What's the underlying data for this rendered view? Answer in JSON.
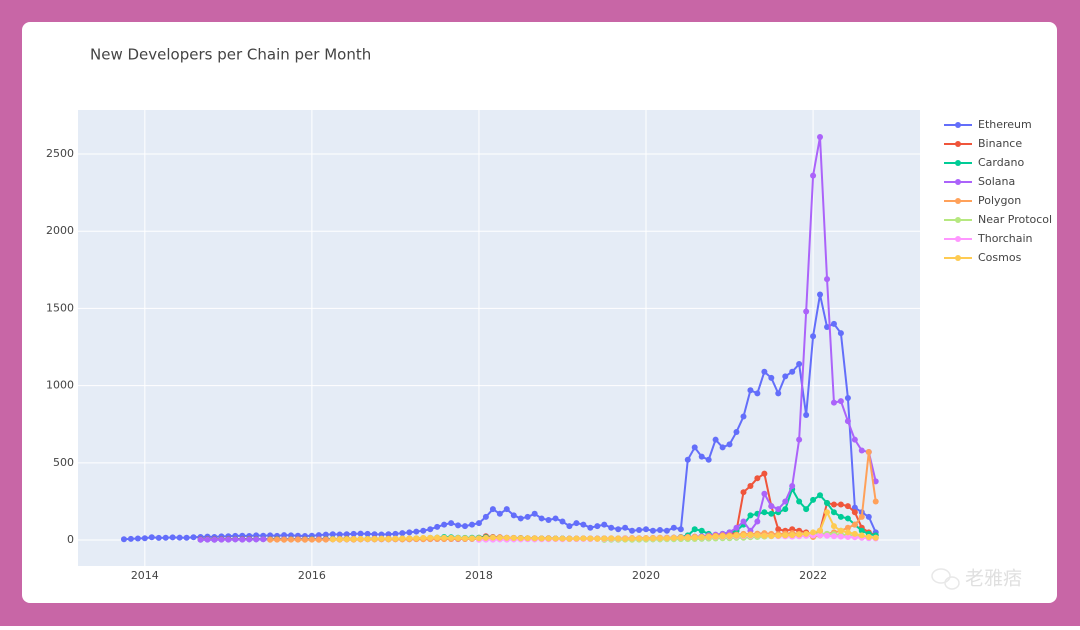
{
  "chart_data": {
    "type": "line",
    "title": "New Developers per Chain per Month",
    "x": [
      2013.75,
      2013.833,
      2013.917,
      2014.0,
      2014.083,
      2014.167,
      2014.25,
      2014.333,
      2014.417,
      2014.5,
      2014.583,
      2014.667,
      2014.75,
      2014.833,
      2014.917,
      2015.0,
      2015.083,
      2015.167,
      2015.25,
      2015.333,
      2015.417,
      2015.5,
      2015.583,
      2015.667,
      2015.75,
      2015.833,
      2015.917,
      2016.0,
      2016.083,
      2016.167,
      2016.25,
      2016.333,
      2016.417,
      2016.5,
      2016.583,
      2016.667,
      2016.75,
      2016.833,
      2016.917,
      2017.0,
      2017.083,
      2017.167,
      2017.25,
      2017.333,
      2017.417,
      2017.5,
      2017.583,
      2017.667,
      2017.75,
      2017.833,
      2017.917,
      2018.0,
      2018.083,
      2018.167,
      2018.25,
      2018.333,
      2018.417,
      2018.5,
      2018.583,
      2018.667,
      2018.75,
      2018.833,
      2018.917,
      2019.0,
      2019.083,
      2019.167,
      2019.25,
      2019.333,
      2019.417,
      2019.5,
      2019.583,
      2019.667,
      2019.75,
      2019.833,
      2019.917,
      2020.0,
      2020.083,
      2020.167,
      2020.25,
      2020.333,
      2020.417,
      2020.5,
      2020.583,
      2020.667,
      2020.75,
      2020.833,
      2020.917,
      2021.0,
      2021.083,
      2021.167,
      2021.25,
      2021.333,
      2021.417,
      2021.5,
      2021.583,
      2021.667,
      2021.75,
      2021.833,
      2021.917,
      2022.0,
      2022.083,
      2022.167,
      2022.25,
      2022.333,
      2022.417,
      2022.5,
      2022.583,
      2022.667,
      2022.75
    ],
    "series": [
      {
        "name": "Ethereum",
        "color": "#636efa",
        "values": [
          5,
          8,
          10,
          12,
          18,
          14,
          15,
          17,
          16,
          15,
          18,
          20,
          22,
          20,
          24,
          25,
          27,
          28,
          26,
          30,
          28,
          30,
          27,
          32,
          30,
          28,
          26,
          28,
          32,
          35,
          38,
          36,
          38,
          40,
          42,
          40,
          38,
          36,
          38,
          40,
          45,
          50,
          55,
          60,
          70,
          85,
          100,
          110,
          95,
          90,
          100,
          110,
          150,
          200,
          170,
          200,
          160,
          140,
          150,
          170,
          140,
          130,
          140,
          120,
          90,
          110,
          100,
          80,
          90,
          100,
          80,
          70,
          80,
          60,
          65,
          70,
          60,
          65,
          60,
          80,
          70,
          520,
          600,
          540,
          520,
          650,
          600,
          620,
          700,
          800,
          970,
          950,
          1090,
          1050,
          950,
          1060,
          1090,
          1140,
          810,
          1320,
          1590,
          1380,
          1400,
          1340,
          920,
          210,
          180,
          150,
          50
        ]
      },
      {
        "name": "Binance",
        "color": "#ef553b",
        "values": [
          null,
          null,
          null,
          null,
          null,
          null,
          null,
          null,
          null,
          null,
          null,
          5,
          6,
          5,
          6,
          6,
          7,
          6,
          8,
          7,
          6,
          7,
          8,
          7,
          6,
          8,
          7,
          6,
          7,
          8,
          7,
          8,
          9,
          8,
          7,
          8,
          9,
          8,
          9,
          8,
          9,
          10,
          9,
          10,
          12,
          11,
          10,
          12,
          11,
          12,
          13,
          15,
          25,
          20,
          18,
          15,
          14,
          13,
          12,
          12,
          11,
          12,
          10,
          10,
          9,
          10,
          11,
          10,
          9,
          10,
          9,
          8,
          9,
          10,
          11,
          10,
          11,
          12,
          13,
          12,
          14,
          15,
          18,
          20,
          22,
          25,
          30,
          30,
          60,
          310,
          350,
          400,
          430,
          220,
          70,
          60,
          70,
          60,
          50,
          40,
          60,
          240,
          230,
          230,
          220,
          180,
          80,
          50,
          30
        ]
      },
      {
        "name": "Cardano",
        "color": "#00cc96",
        "values": [
          null,
          null,
          null,
          null,
          null,
          null,
          null,
          null,
          null,
          null,
          null,
          3,
          4,
          3,
          4,
          4,
          5,
          4,
          5,
          5,
          6,
          5,
          6,
          6,
          5,
          6,
          5,
          6,
          5,
          6,
          7,
          6,
          7,
          6,
          7,
          8,
          7,
          8,
          7,
          8,
          9,
          8,
          10,
          12,
          14,
          16,
          20,
          18,
          15,
          14,
          15,
          15,
          18,
          16,
          14,
          13,
          12,
          12,
          11,
          10,
          10,
          9,
          10,
          10,
          9,
          8,
          9,
          8,
          9,
          10,
          8,
          9,
          10,
          9,
          10,
          10,
          12,
          11,
          13,
          15,
          20,
          30,
          70,
          60,
          40,
          30,
          40,
          50,
          60,
          100,
          160,
          170,
          180,
          170,
          180,
          200,
          330,
          250,
          200,
          260,
          290,
          240,
          180,
          150,
          140,
          100,
          60,
          40,
          30
        ]
      },
      {
        "name": "Solana",
        "color": "#ab63fa",
        "values": [
          null,
          null,
          null,
          null,
          null,
          null,
          null,
          null,
          null,
          null,
          null,
          2,
          3,
          2,
          3,
          3,
          4,
          3,
          4,
          4,
          5,
          4,
          4,
          5,
          4,
          5,
          4,
          4,
          5,
          4,
          5,
          5,
          4,
          5,
          6,
          5,
          6,
          5,
          6,
          5,
          6,
          5,
          6,
          7,
          6,
          7,
          8,
          7,
          6,
          7,
          8,
          8,
          9,
          8,
          7,
          8,
          9,
          8,
          7,
          8,
          7,
          8,
          9,
          8,
          7,
          8,
          9,
          8,
          9,
          10,
          9,
          10,
          11,
          10,
          12,
          12,
          13,
          14,
          15,
          16,
          18,
          20,
          22,
          25,
          30,
          35,
          40,
          50,
          80,
          120,
          60,
          120,
          300,
          220,
          200,
          250,
          350,
          650,
          1480,
          2360,
          2610,
          1690,
          890,
          900,
          770,
          650,
          580,
          570,
          380
        ]
      },
      {
        "name": "Polygon",
        "color": "#ffa15a",
        "values": [
          null,
          null,
          null,
          null,
          null,
          null,
          null,
          null,
          null,
          null,
          null,
          null,
          null,
          null,
          null,
          null,
          null,
          null,
          null,
          null,
          null,
          2,
          3,
          2,
          3,
          3,
          2,
          3,
          2,
          3,
          4,
          3,
          4,
          3,
          4,
          5,
          4,
          5,
          4,
          5,
          4,
          5,
          6,
          5,
          6,
          7,
          6,
          7,
          8,
          7,
          8,
          8,
          9,
          10,
          9,
          8,
          9,
          8,
          9,
          10,
          9,
          8,
          9,
          9,
          10,
          9,
          10,
          11,
          10,
          11,
          12,
          11,
          12,
          13,
          12,
          13,
          14,
          15,
          14,
          16,
          18,
          20,
          22,
          20,
          25,
          28,
          30,
          30,
          35,
          40,
          38,
          42,
          45,
          40,
          38,
          42,
          45,
          40,
          35,
          20,
          30,
          40,
          50,
          60,
          80,
          100,
          150,
          570,
          250
        ]
      },
      {
        "name": "Near Protocol",
        "color": "#b6e880",
        "values": [
          null,
          null,
          null,
          null,
          null,
          null,
          null,
          null,
          null,
          null,
          null,
          null,
          null,
          null,
          null,
          null,
          null,
          null,
          null,
          null,
          null,
          null,
          null,
          null,
          null,
          null,
          null,
          null,
          null,
          null,
          null,
          null,
          null,
          null,
          null,
          null,
          null,
          null,
          null,
          null,
          null,
          null,
          null,
          null,
          null,
          null,
          null,
          null,
          null,
          null,
          null,
          null,
          null,
          null,
          null,
          null,
          null,
          null,
          null,
          null,
          null,
          null,
          null,
          null,
          null,
          null,
          null,
          null,
          null,
          1,
          2,
          2,
          3,
          2,
          3,
          3,
          4,
          4,
          5,
          5,
          6,
          6,
          7,
          8,
          9,
          10,
          12,
          12,
          14,
          15,
          18,
          20,
          22,
          25,
          28,
          30,
          32,
          35,
          38,
          40,
          42,
          40,
          38,
          35,
          32,
          30,
          25,
          20,
          15
        ]
      },
      {
        "name": "Thorchain",
        "color": "#ff97ff",
        "values": [
          null,
          null,
          null,
          null,
          null,
          null,
          null,
          null,
          null,
          null,
          null,
          null,
          null,
          null,
          null,
          null,
          null,
          null,
          null,
          null,
          null,
          null,
          null,
          null,
          null,
          null,
          null,
          null,
          null,
          null,
          null,
          null,
          null,
          null,
          null,
          null,
          null,
          null,
          null,
          null,
          null,
          null,
          null,
          null,
          null,
          null,
          null,
          null,
          null,
          null,
          null,
          2,
          3,
          3,
          4,
          3,
          4,
          4,
          5,
          4,
          5,
          5,
          6,
          5,
          6,
          6,
          7,
          6,
          7,
          7,
          8,
          8,
          9,
          9,
          10,
          10,
          11,
          12,
          12,
          13,
          14,
          15,
          16,
          17,
          18,
          20,
          22,
          22,
          24,
          26,
          28,
          30,
          28,
          26,
          25,
          24,
          22,
          25,
          28,
          30,
          32,
          28,
          25,
          22,
          20,
          18,
          15,
          12,
          10
        ]
      },
      {
        "name": "Cosmos",
        "color": "#fecb52",
        "values": [
          null,
          null,
          null,
          null,
          null,
          null,
          null,
          null,
          null,
          null,
          null,
          null,
          null,
          null,
          null,
          null,
          null,
          null,
          null,
          null,
          null,
          null,
          null,
          null,
          null,
          null,
          null,
          null,
          null,
          null,
          5,
          6,
          6,
          7,
          8,
          7,
          8,
          9,
          8,
          9,
          10,
          11,
          12,
          14,
          15,
          16,
          15,
          14,
          13,
          12,
          12,
          12,
          14,
          16,
          15,
          14,
          13,
          12,
          12,
          11,
          10,
          10,
          9,
          9,
          8,
          9,
          10,
          9,
          8,
          9,
          10,
          9,
          8,
          9,
          10,
          10,
          11,
          12,
          12,
          13,
          14,
          15,
          16,
          18,
          20,
          22,
          25,
          25,
          28,
          30,
          32,
          30,
          28,
          26,
          28,
          30,
          32,
          35,
          40,
          50,
          60,
          180,
          90,
          60,
          50,
          40,
          30,
          20,
          15
        ]
      }
    ],
    "xlim": [
      2013.2,
      2023.28
    ],
    "xticks": [
      2014,
      2016,
      2018,
      2020,
      2022
    ],
    "ylim": [
      -168,
      2785
    ],
    "yticks": [
      0,
      500,
      1000,
      1500,
      2000,
      2500
    ],
    "grid": true,
    "legend": "right",
    "watermark": "老雅痞"
  }
}
